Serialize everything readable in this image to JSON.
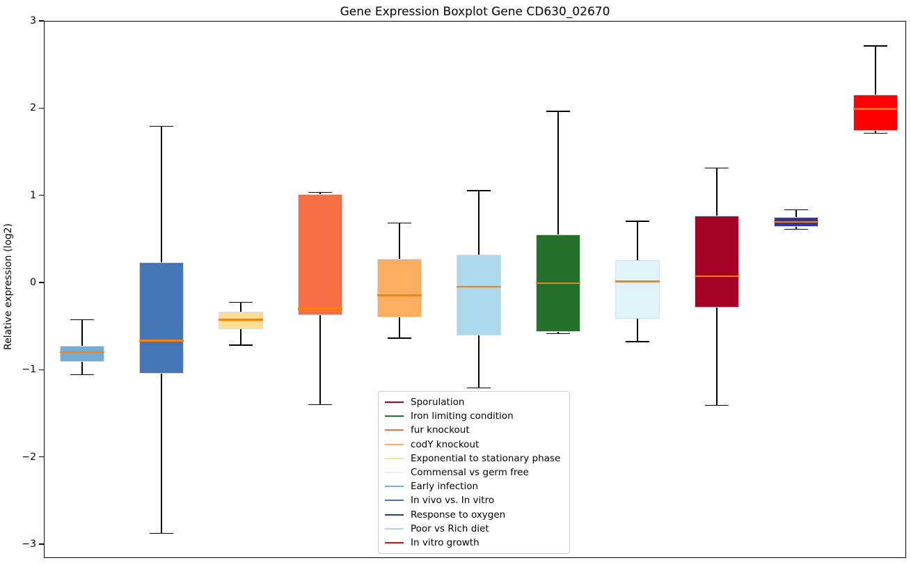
{
  "chart_data": {
    "type": "boxplot",
    "title": "Gene Expression Boxplot Gene CD630_02670",
    "xlabel": "",
    "ylabel": "Relative expression (log2)",
    "ylim": [
      -3.16,
      3.0
    ],
    "yticks": [
      3,
      2,
      1,
      0,
      -1,
      -2,
      -3
    ],
    "ytick_labels": [
      "3",
      "2",
      "1",
      "0",
      "−1",
      "−2",
      "−3"
    ],
    "grid": false,
    "legend_position": "lower center, inside axes",
    "median_color": "#ff7f0e",
    "whisker_color": "#000000",
    "box_edge_color": "#dbdbe8",
    "boxes": [
      {
        "label": "Early infection",
        "color": "#74add1",
        "whislo": -1.05,
        "q1": -0.9,
        "med": -0.79,
        "q3": -0.72,
        "whishi": -0.42
      },
      {
        "label": "In vivo vs. In vitro",
        "color": "#4575b4",
        "whislo": -2.87,
        "q1": -1.04,
        "med": -0.66,
        "q3": 0.24,
        "whishi": 1.8
      },
      {
        "label": "Exponential to stationary phase",
        "color": "#fee090",
        "whislo": -0.71,
        "q1": -0.53,
        "med": -0.42,
        "q3": -0.33,
        "whishi": -0.22
      },
      {
        "label": "fur knockout",
        "color": "#f46d43",
        "whislo": -1.39,
        "q1": -0.37,
        "med": -0.29,
        "q3": 1.02,
        "whishi": 1.04
      },
      {
        "label": "codY knockout",
        "color": "#fdae61",
        "whislo": -0.63,
        "q1": -0.39,
        "med": -0.14,
        "q3": 0.28,
        "whishi": 0.69
      },
      {
        "label": "Poor vs Rich diet",
        "color": "#abd9e9",
        "whislo": -1.2,
        "q1": -0.6,
        "med": -0.04,
        "q3": 0.33,
        "whishi": 1.06
      },
      {
        "label": "Iron limiting condition",
        "color": "#26702e",
        "whislo": -0.58,
        "q1": -0.56,
        "med": 0.0,
        "q3": 0.56,
        "whishi": 1.97
      },
      {
        "label": "Commensal vs germ free",
        "color": "#e0f3f8",
        "whislo": -0.67,
        "q1": -0.41,
        "med": 0.02,
        "q3": 0.26,
        "whishi": 0.71
      },
      {
        "label": "Sporulation",
        "color": "#a50026",
        "whislo": -1.4,
        "q1": -0.28,
        "med": 0.08,
        "q3": 0.77,
        "whishi": 1.32
      },
      {
        "label": "Response to oxygen",
        "color": "#313695",
        "whislo": 0.62,
        "q1": 0.65,
        "med": 0.7,
        "q3": 0.76,
        "whishi": 0.84
      },
      {
        "label": "In vitro growth",
        "color": "#ff0000",
        "whislo": 1.72,
        "q1": 1.75,
        "med": 2.0,
        "q3": 2.16,
        "whishi": 2.72
      }
    ],
    "legend_entries": [
      {
        "label": "Sporulation",
        "color": "#a50026"
      },
      {
        "label": "Iron limiting condition",
        "color": "#26702e"
      },
      {
        "label": "fur knockout",
        "color": "#f46d43"
      },
      {
        "label": "codY knockout",
        "color": "#fdae61"
      },
      {
        "label": "Exponential to stationary phase",
        "color": "#fee090"
      },
      {
        "label": "Commensal vs germ free",
        "color": "#e0f3f8"
      },
      {
        "label": "Early infection",
        "color": "#74add1"
      },
      {
        "label": "In vivo vs. In vitro",
        "color": "#4575b4"
      },
      {
        "label": "Response to oxygen",
        "color": "#313695"
      },
      {
        "label": "Poor vs Rich diet",
        "color": "#abd9e9"
      },
      {
        "label": "In vitro growth",
        "color": "#ff0000"
      }
    ]
  }
}
